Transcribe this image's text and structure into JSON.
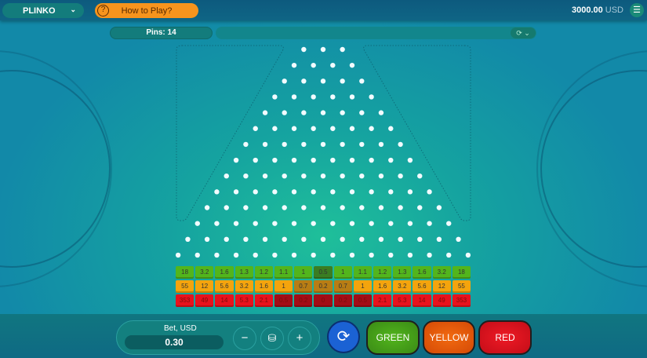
{
  "header": {
    "game": "PLINKO",
    "how_to_play": "How to Play?",
    "balance": "3000.00",
    "currency": "USD",
    "menu_icon": "hamburger-icon"
  },
  "controls": {
    "pins_label": "Pins: 14",
    "history_icon": "history-clock-icon"
  },
  "board": {
    "peg_rows": 14,
    "top_row_pegs": 3
  },
  "multipliers": {
    "green": [
      "18",
      "3.2",
      "1.6",
      "1.3",
      "1.2",
      "1.1",
      "1",
      "0.5",
      "1",
      "1.1",
      "1.2",
      "1.3",
      "1.6",
      "3.2",
      "18"
    ],
    "yellow": [
      "55",
      "12",
      "5.6",
      "3.2",
      "1.6",
      "1",
      "0.7",
      "0.2",
      "0.7",
      "1",
      "1.6",
      "3.2",
      "5.6",
      "12",
      "55"
    ],
    "red": [
      "353",
      "49",
      "14",
      "5.3",
      "2.1",
      "0.5",
      "0.2",
      "0",
      "0.2",
      "0.5",
      "2.1",
      "5.3",
      "14",
      "49",
      "353"
    ]
  },
  "bet": {
    "label": "Bet, USD",
    "value": "0.30",
    "minus": "−",
    "plus": "+"
  },
  "actions": {
    "green": "GREEN",
    "yellow": "YELLOW",
    "red": "RED"
  },
  "colors": {
    "green": "#52b51c",
    "yellow": "#f4a40d",
    "red": "#e8121d",
    "accent_orange": "#f7941d",
    "play_blue": "#1b62d4"
  }
}
